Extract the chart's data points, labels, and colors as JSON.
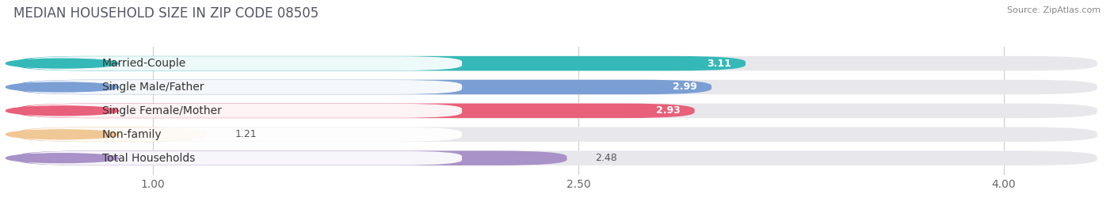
{
  "title": "MEDIAN HOUSEHOLD SIZE IN ZIP CODE 08505",
  "source": "Source: ZipAtlas.com",
  "categories": [
    "Married-Couple",
    "Single Male/Father",
    "Single Female/Mother",
    "Non-family",
    "Total Households"
  ],
  "values": [
    3.11,
    2.99,
    2.93,
    1.21,
    2.48
  ],
  "bar_colors": [
    "#35b8b8",
    "#7b9fd4",
    "#e8607a",
    "#f0c896",
    "#a992c8"
  ],
  "bar_bg_color": "#e8e8ec",
  "background_color": "#ffffff",
  "xlim_min": 0.5,
  "xlim_max": 4.35,
  "xticks": [
    1.0,
    2.5,
    4.0
  ],
  "xtick_labels": [
    "1.00",
    "2.50",
    "4.00"
  ],
  "title_fontsize": 12,
  "label_fontsize": 10,
  "value_fontsize": 9,
  "source_fontsize": 8,
  "value_inside_color": "white",
  "value_outside_color": "#555555",
  "inside_threshold": 2.5
}
